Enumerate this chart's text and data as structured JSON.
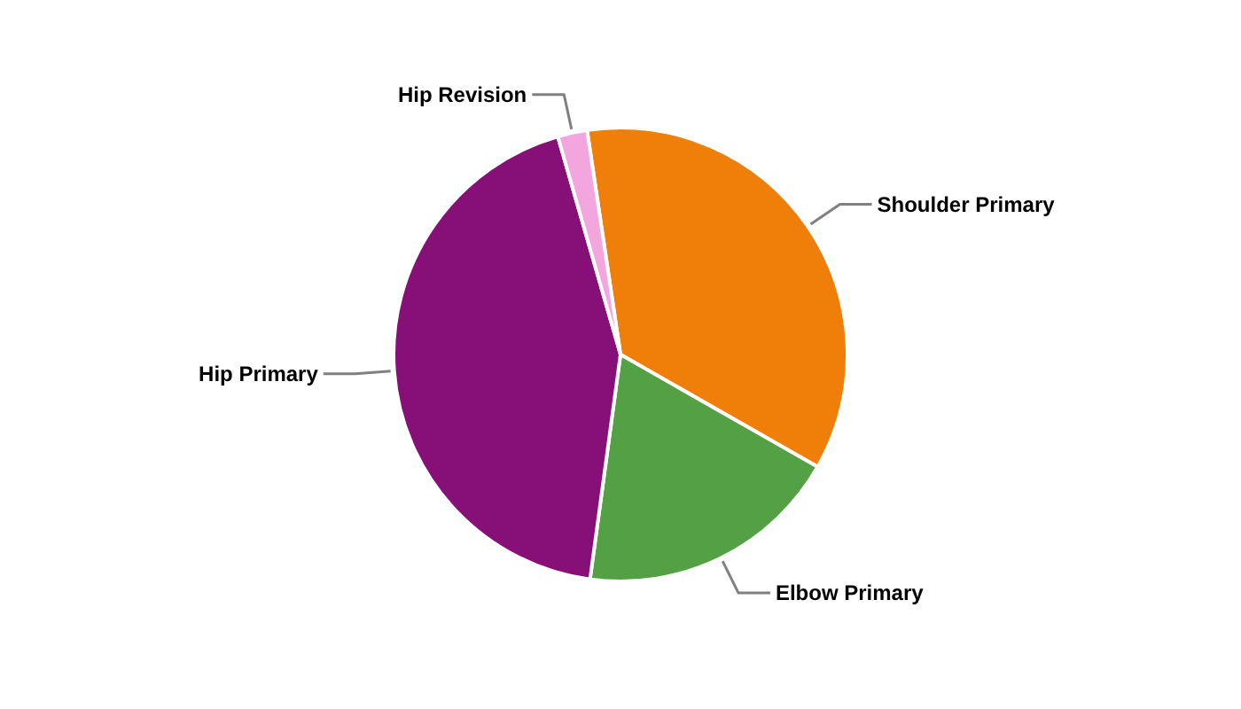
{
  "chart_data": {
    "type": "pie",
    "categories": [
      "Shoulder Primary",
      "Elbow Primary",
      "Hip Primary",
      "Hip Revision"
    ],
    "values": [
      35.6,
      18.9,
      43.4,
      2.1
    ],
    "colors": [
      "#f07f09",
      "#54a044",
      "#861078",
      "#f2a6dd"
    ]
  }
}
